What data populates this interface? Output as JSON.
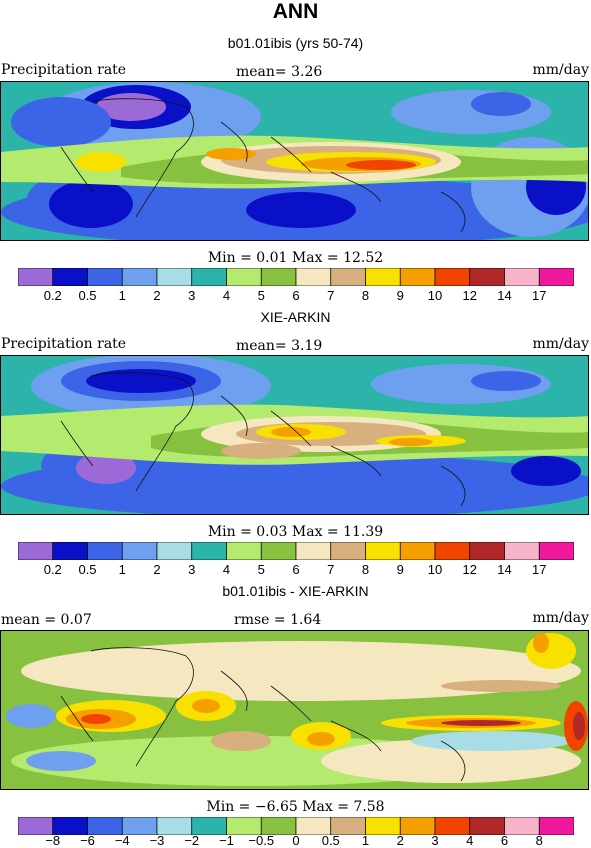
{
  "title": "ANN",
  "palette": [
    "#9b6ad6",
    "#0a0fc8",
    "#3c64e6",
    "#6fa0f0",
    "#a8dde6",
    "#2cb4aa",
    "#b4eb6e",
    "#88c040",
    "#f5e8c0",
    "#d8b080",
    "#f8e000",
    "#f5a000",
    "#f04400",
    "#b02828",
    "#f8b4c8",
    "#f0189c"
  ],
  "panels": [
    {
      "title": "b01.01ibis (yrs 50-74)",
      "left_label": "Precipitation rate",
      "center_label": "mean=   3.26",
      "right_label": "mm/day",
      "stats": "Min =   0.01  Max =  12.52",
      "colorbar_ticks": [
        "0.2",
        "0.5",
        "1",
        "2",
        "3",
        "4",
        "5",
        "6",
        "7",
        "8",
        "9",
        "10",
        "12",
        "14",
        "17"
      ]
    },
    {
      "title": "XIE-ARKIN",
      "left_label": "Precipitation rate",
      "center_label": "mean=   3.19",
      "right_label": "mm/day",
      "stats": "Min =   0.03  Max =  11.39",
      "colorbar_ticks": [
        "0.2",
        "0.5",
        "1",
        "2",
        "3",
        "4",
        "5",
        "6",
        "7",
        "8",
        "9",
        "10",
        "12",
        "14",
        "17"
      ]
    },
    {
      "title": "b01.01ibis - XIE-ARKIN",
      "left_label": "mean =   0.07",
      "center_label": "rmse =   1.64",
      "right_label": "mm/day",
      "stats": "Min =  −6.65  Max =   7.58",
      "colorbar_ticks": [
        "−8",
        "−6",
        "−4",
        "−3",
        "−2",
        "−1",
        "−0.5",
        "0",
        "0.5",
        "1",
        "2",
        "3",
        "4",
        "6",
        "8"
      ]
    }
  ],
  "chart_data": [
    {
      "type": "heatmap",
      "title": "b01.01ibis (yrs 50-74)",
      "variable": "Precipitation rate",
      "units": "mm/day",
      "mean": 3.26,
      "min": 0.01,
      "max": 12.52,
      "contour_levels": [
        0.2,
        0.5,
        1,
        2,
        3,
        4,
        5,
        6,
        7,
        8,
        9,
        10,
        12,
        14,
        17
      ]
    },
    {
      "type": "heatmap",
      "title": "XIE-ARKIN",
      "variable": "Precipitation rate",
      "units": "mm/day",
      "mean": 3.19,
      "min": 0.03,
      "max": 11.39,
      "contour_levels": [
        0.2,
        0.5,
        1,
        2,
        3,
        4,
        5,
        6,
        7,
        8,
        9,
        10,
        12,
        14,
        17
      ]
    },
    {
      "type": "heatmap",
      "title": "b01.01ibis - XIE-ARKIN",
      "units": "mm/day",
      "mean": 0.07,
      "rmse": 1.64,
      "min": -6.65,
      "max": 7.58,
      "contour_levels": [
        -8,
        -6,
        -4,
        -3,
        -2,
        -1,
        -0.5,
        0,
        0.5,
        1,
        2,
        3,
        4,
        6,
        8
      ]
    }
  ]
}
